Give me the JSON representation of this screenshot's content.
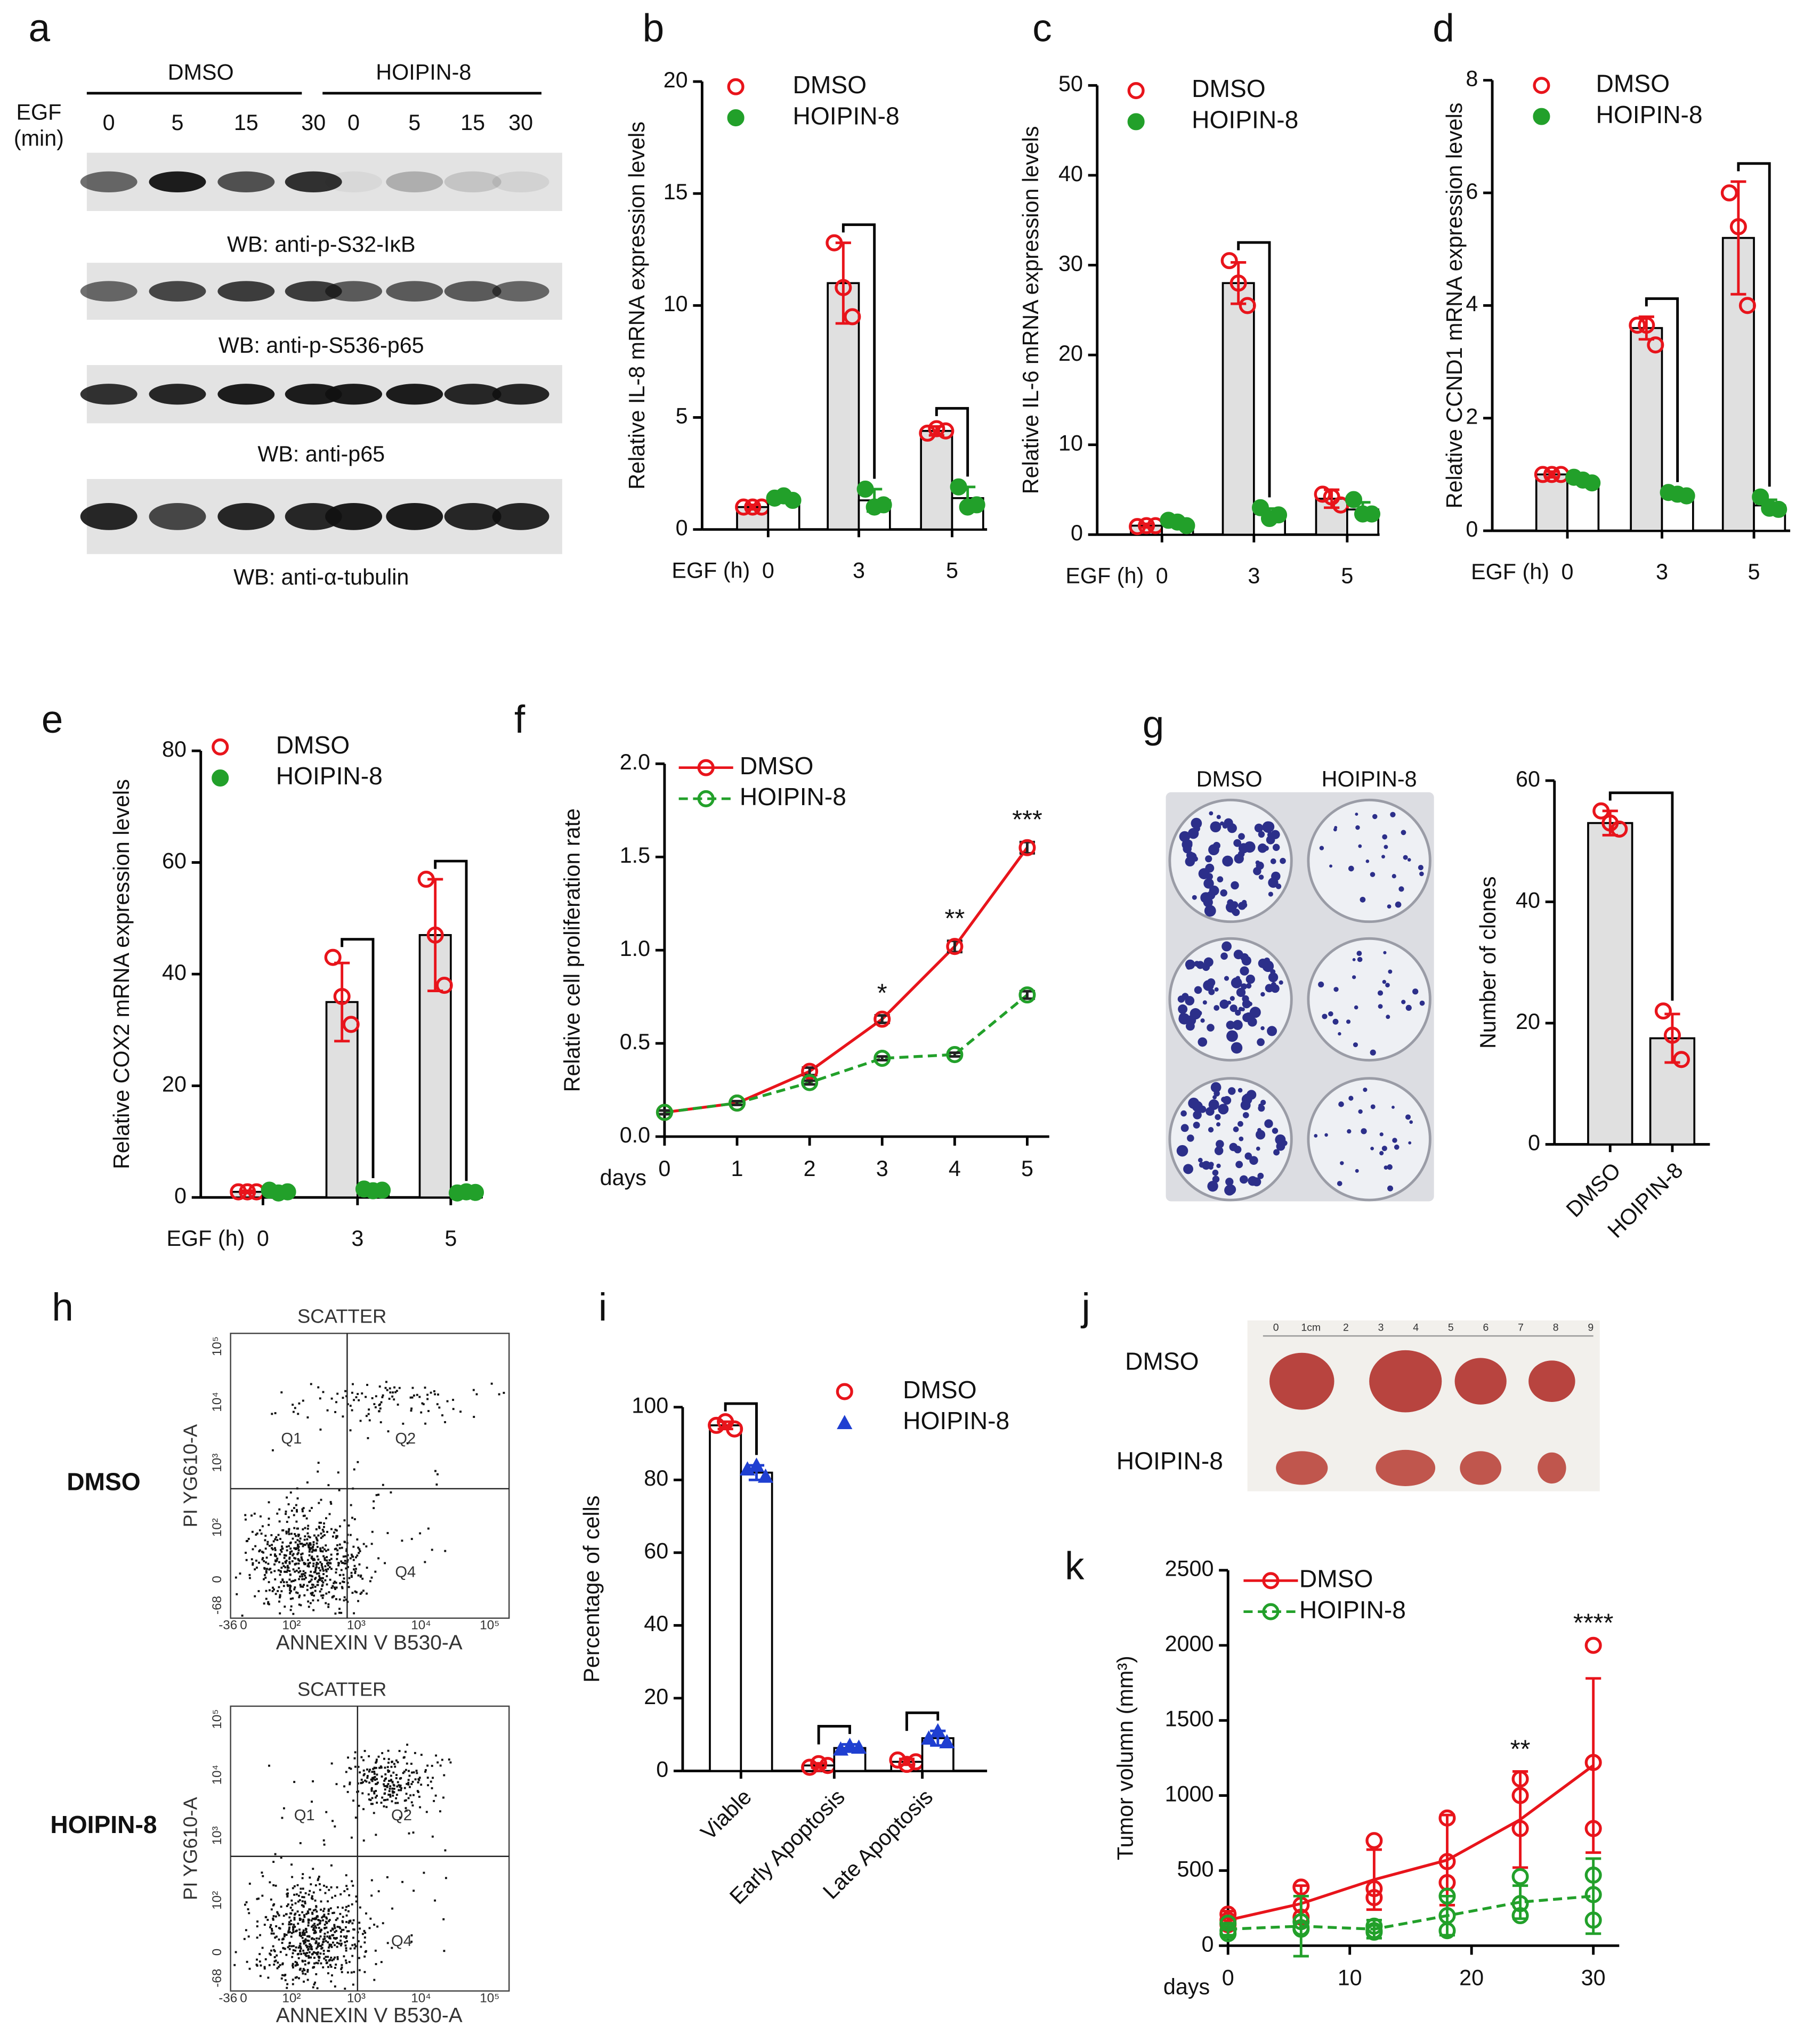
{
  "blot": {
    "panel": "a",
    "groups": [
      "DMSO",
      "HOIPIN-8"
    ],
    "egf_label": [
      "EGF",
      "(min)"
    ],
    "lanes": [
      "0",
      "5",
      "15",
      "30",
      "0",
      "5",
      "15",
      "30"
    ],
    "blots": [
      "WB: anti-p-S32-IκB",
      "WB: anti-p-S536-p65",
      "WB: anti-p65",
      "WB: anti-α-tubulin"
    ]
  },
  "colony_photo": {
    "columns": [
      "DMSO",
      "HOIPIN-8"
    ]
  },
  "flow": {
    "panel": "h",
    "plots": [
      {
        "condition": "DMSO",
        "title": "SCATTER",
        "ylabel": "PI YG610-A",
        "xlabel": "ANNEXIN V B530-A",
        "quadrants": [
          "Q1",
          "Q2",
          "Q4"
        ],
        "xticks": [
          "-36",
          "0",
          "10²",
          "10³",
          "10⁴",
          "10⁵"
        ],
        "yticks": [
          "-68",
          "0",
          "10²",
          "10³",
          "10⁴",
          "10⁵"
        ]
      },
      {
        "condition": "HOIPIN-8",
        "title": "SCATTER",
        "ylabel": "PI YG610-A",
        "xlabel": "ANNEXIN V B530-A",
        "quadrants": [
          "Q1",
          "Q2",
          "Q4"
        ],
        "xticks": [
          "-36",
          "0",
          "10²",
          "10³",
          "10⁴",
          "10⁵"
        ],
        "yticks": [
          "-68",
          "0",
          "10²",
          "10³",
          "10⁴",
          "10⁵"
        ]
      }
    ]
  },
  "tumor_photo": {
    "panel": "j",
    "ruler": [
      "0",
      "1cm",
      "2",
      "3",
      "4",
      "5",
      "6",
      "7",
      "8",
      "9"
    ],
    "rows": [
      "DMSO",
      "HOIPIN-8"
    ]
  },
  "chart_data": [
    {
      "panel": "b",
      "type": "bar",
      "ylabel": "Relative IL-8 mRNA expression levels",
      "xlabel": "EGF (h)",
      "categories": [
        "0",
        "3",
        "5"
      ],
      "ylim": [
        0,
        20
      ],
      "yticks": [
        0,
        5,
        10,
        15,
        20
      ],
      "legend": true,
      "series": [
        {
          "name": "DMSO",
          "color": "#e8141b",
          "marker": "open-circle",
          "bar_color": "#e0e0e0",
          "values": [
            1,
            11,
            4.4
          ],
          "errors": [
            0.1,
            1.8,
            0.2
          ],
          "points": [
            [
              1,
              1,
              1
            ],
            [
              12.8,
              10.8,
              9.5
            ],
            [
              4.3,
              4.5,
              4.4
            ]
          ]
        },
        {
          "name": "HOIPIN-8",
          "color": "#22a02a",
          "marker": "filled-circle",
          "bar_color": "#ffffff",
          "values": [
            1.4,
            1.3,
            1.4
          ],
          "errors": [
            0.2,
            0.5,
            0.5
          ],
          "points": [
            [
              1.4,
              1.5,
              1.3
            ],
            [
              1.8,
              1.0,
              1.1
            ],
            [
              1.9,
              1.0,
              1.1
            ]
          ]
        }
      ]
    },
    {
      "panel": "c",
      "type": "bar",
      "ylabel": "Relative IL-6 mRNA expression levels",
      "xlabel": "EGF (h)",
      "categories": [
        "0",
        "3",
        "5"
      ],
      "ylim": [
        0,
        50
      ],
      "yticks": [
        0,
        10,
        20,
        30,
        40,
        50
      ],
      "legend": true,
      "series": [
        {
          "name": "DMSO",
          "color": "#e8141b",
          "marker": "open-circle",
          "bar_color": "#e0e0e0",
          "values": [
            1,
            28,
            4
          ],
          "errors": [
            0.2,
            2.3,
            1
          ],
          "points": [
            [
              0.9,
              1,
              1
            ],
            [
              30.5,
              28,
              25.5
            ],
            [
              4.5,
              4.2,
              3.3
            ]
          ]
        },
        {
          "name": "HOIPIN-8",
          "color": "#22a02a",
          "marker": "filled-circle",
          "bar_color": "#ffffff",
          "values": [
            1.3,
            2.3,
            2.8
          ],
          "errors": [
            0.3,
            0.6,
            0.8
          ],
          "points": [
            [
              1.6,
              1.4,
              1
            ],
            [
              3,
              1.8,
              2.2
            ],
            [
              3.9,
              2.3,
              2.3
            ]
          ]
        }
      ]
    },
    {
      "panel": "d",
      "type": "bar",
      "ylabel": "Relative CCND1 mRNA expression levels",
      "xlabel": "EGF (h)",
      "categories": [
        "0",
        "3",
        "5"
      ],
      "ylim": [
        0,
        8
      ],
      "yticks": [
        0,
        2,
        4,
        6,
        8
      ],
      "legend": true,
      "series": [
        {
          "name": "DMSO",
          "color": "#e8141b",
          "marker": "open-circle",
          "bar_color": "#e0e0e0",
          "values": [
            1,
            3.6,
            5.2
          ],
          "errors": [
            0.05,
            0.2,
            1
          ],
          "points": [
            [
              1,
              1,
              1
            ],
            [
              3.65,
              3.65,
              3.3
            ],
            [
              6,
              5.4,
              4
            ]
          ]
        },
        {
          "name": "HOIPIN-8",
          "color": "#22a02a",
          "marker": "filled-circle",
          "bar_color": "#ffffff",
          "values": [
            0.9,
            0.65,
            0.45
          ],
          "errors": [
            0.05,
            0.03,
            0.1
          ],
          "points": [
            [
              0.95,
              0.9,
              0.85
            ],
            [
              0.68,
              0.65,
              0.62
            ],
            [
              0.6,
              0.4,
              0.38
            ]
          ]
        }
      ]
    },
    {
      "panel": "e",
      "type": "bar",
      "ylabel": "Relative COX2 mRNA expression levels",
      "xlabel": "EGF (h)",
      "categories": [
        "0",
        "3",
        "5"
      ],
      "ylim": [
        0,
        80
      ],
      "yticks": [
        0,
        20,
        40,
        60,
        80
      ],
      "legend": true,
      "series": [
        {
          "name": "DMSO",
          "color": "#e8141b",
          "marker": "open-circle",
          "bar_color": "#e0e0e0",
          "values": [
            1,
            35,
            47
          ],
          "errors": [
            0.2,
            7,
            10
          ],
          "points": [
            [
              1,
              1,
              1
            ],
            [
              43,
              36,
              31
            ],
            [
              57,
              47,
              38
            ]
          ]
        },
        {
          "name": "HOIPIN-8",
          "color": "#22a02a",
          "marker": "filled-circle",
          "bar_color": "#ffffff",
          "values": [
            1,
            1.3,
            0.9
          ],
          "errors": [
            0.3,
            0.3,
            0.2
          ],
          "points": [
            [
              1.3,
              0.8,
              1
            ],
            [
              1.5,
              1.2,
              1.3
            ],
            [
              0.8,
              1,
              0.9
            ]
          ]
        }
      ]
    },
    {
      "panel": "f",
      "type": "line",
      "ylabel": "Relative cell proliferation rate",
      "xlabel": "days",
      "x": [
        0,
        1,
        2,
        3,
        4,
        5
      ],
      "xlim": [
        0,
        5
      ],
      "xticks": [
        0,
        1,
        2,
        3,
        4,
        5
      ],
      "ylim": [
        0,
        2
      ],
      "yticks": [
        {
          "value": 0,
          "label": "0.0"
        },
        {
          "value": 0.5,
          "label": "0.5"
        },
        {
          "value": 1,
          "label": "1.0"
        },
        {
          "value": 1.5,
          "label": "1.5"
        },
        {
          "value": 2,
          "label": "2.0"
        }
      ],
      "legend": true,
      "series": [
        {
          "name": "DMSO",
          "color": "#e8141b",
          "marker": "open-circle",
          "line_style": "solid",
          "values": [
            0.13,
            0.18,
            0.35,
            0.63,
            1.02,
            1.55
          ],
          "errors": [
            0.01,
            0.01,
            0.02,
            0.02,
            0.03,
            0.03
          ]
        },
        {
          "name": "HOIPIN-8",
          "color": "#22a02a",
          "marker": "open-circle",
          "line_style": "dashed",
          "values": [
            0.13,
            0.18,
            0.29,
            0.42,
            0.44,
            0.76
          ],
          "errors": [
            0.01,
            0.01,
            0.01,
            0.01,
            0.01,
            0.02
          ]
        }
      ],
      "annotations": [
        {
          "x": 3,
          "text": "*"
        },
        {
          "x": 4,
          "text": "**"
        },
        {
          "x": 5,
          "text": "***"
        }
      ]
    },
    {
      "panel": "g",
      "type": "bar",
      "ylabel": "Number of clones",
      "categories": [
        "DMSO",
        "HOIPIN-8"
      ],
      "ylim": [
        0,
        60
      ],
      "yticks": [
        0,
        20,
        40,
        60
      ],
      "legend": false,
      "color": "#e8141b",
      "marker": "open-circle",
      "bar_color": "#e0e0e0",
      "values": [
        53,
        17.5
      ],
      "errors": [
        2,
        4
      ],
      "points": [
        [
          55,
          53,
          52
        ],
        [
          22,
          18,
          14
        ]
      ]
    },
    {
      "panel": "i",
      "type": "bar",
      "ylabel": "Percentage of cells",
      "categories": [
        "Viable",
        "Early Apoptosis",
        "Late Apoptosis"
      ],
      "ylim": [
        0,
        100
      ],
      "yticks": [
        0,
        20,
        40,
        60,
        80,
        100
      ],
      "legend": true,
      "series": [
        {
          "name": "DMSO",
          "color": "#e8141b",
          "marker": "open-circle",
          "bar_color": "#ffffff",
          "values": [
            95,
            1.5,
            2.5
          ],
          "errors": [
            1,
            0.6,
            0.8
          ],
          "points": [
            [
              95,
              96,
              94
            ],
            [
              1,
              2,
              1.5
            ],
            [
              3,
              1.8,
              2.5
            ]
          ]
        },
        {
          "name": "HOIPIN-8",
          "color": "#1f3fd1",
          "marker": "triangle",
          "bar_color": "#ffffff",
          "values": [
            82,
            6.3,
            9
          ],
          "errors": [
            2,
            1,
            2
          ],
          "points": [
            [
              83,
              84,
              81
            ],
            [
              6,
              7,
              6.5
            ],
            [
              9,
              11,
              8
            ]
          ]
        }
      ]
    },
    {
      "panel": "k",
      "type": "line",
      "ylabel": "Tumor volumn (mm³)",
      "xlabel": "days",
      "x": [
        0,
        6,
        12,
        18,
        24,
        30
      ],
      "xlim": [
        0,
        30
      ],
      "xticks": [
        0,
        10,
        20,
        30
      ],
      "ylim": [
        0,
        2500
      ],
      "yticks": [
        0,
        500,
        1000,
        1500,
        2000,
        2500
      ],
      "legend": true,
      "series": [
        {
          "name": "DMSO",
          "color": "#e8141b",
          "marker": "open-circle",
          "line_style": "solid",
          "values": [
            170,
            280,
            440,
            570,
            840,
            1200
          ],
          "errors": [
            60,
            120,
            200,
            300,
            320,
            580
          ],
          "points": [
            [
              210,
              170,
              140
            ],
            [
              390,
              270,
              190
            ],
            [
              700,
              380,
              320
            ],
            [
              850,
              560,
              420
            ],
            [
              1110,
              1000,
              780
            ],
            [
              2000,
              1220,
              780
            ]
          ]
        },
        {
          "name": "HOIPIN-8",
          "color": "#22a02a",
          "marker": "open-circle",
          "line_style": "dashed",
          "values": [
            110,
            130,
            110,
            200,
            290,
            330
          ],
          "errors": [
            40,
            200,
            60,
            130,
            110,
            250
          ],
          "points": [
            [
              150,
              80,
              100
            ],
            [
              160,
              120,
              110
            ],
            [
              130,
              100,
              90
            ],
            [
              330,
              200,
              100
            ],
            [
              460,
              280,
              200
            ],
            [
              470,
              340,
              170
            ]
          ]
        }
      ],
      "annotations": [
        {
          "x": 24,
          "text": "**"
        },
        {
          "x": 30,
          "text": "****"
        }
      ]
    }
  ]
}
